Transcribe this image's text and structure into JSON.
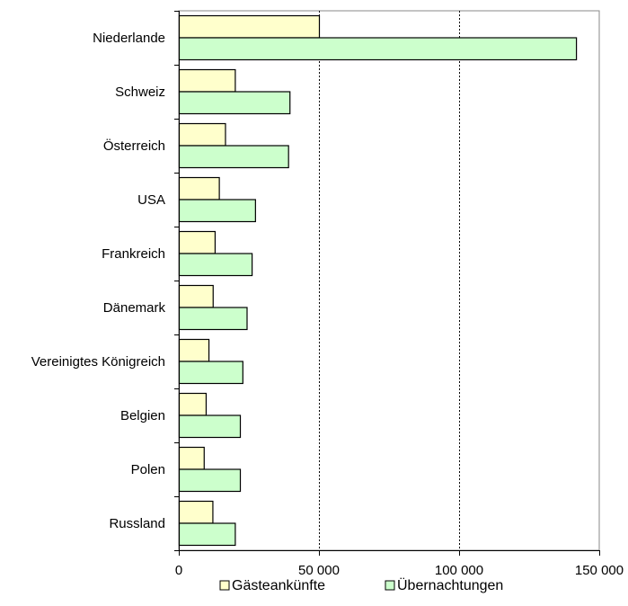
{
  "chart_data": {
    "type": "bar",
    "orientation": "horizontal",
    "categories": [
      "Niederlande",
      "Schweiz",
      "Österreich",
      "USA",
      "Frankreich",
      "Dänemark",
      "Vereinigtes Königreich",
      "Belgien",
      "Polen",
      "Russland"
    ],
    "series": [
      {
        "name": "Gästeankünfte",
        "color": "#FFFFCC",
        "values": [
          50000,
          20000,
          16500,
          14300,
          12800,
          12100,
          10600,
          9600,
          8900,
          12000
        ]
      },
      {
        "name": "Übernachtungen",
        "color": "#CCFFCC",
        "values": [
          141700,
          39500,
          39000,
          27200,
          26000,
          24200,
          22700,
          21800,
          21800,
          20000
        ]
      }
    ],
    "xlim": [
      0,
      150000
    ],
    "xticks": [
      0,
      50000,
      100000,
      150000
    ],
    "xtick_labels": [
      "0",
      "50 000",
      "100 000",
      "150 000"
    ],
    "grid": "vertical dashed",
    "legend_position": "bottom"
  }
}
